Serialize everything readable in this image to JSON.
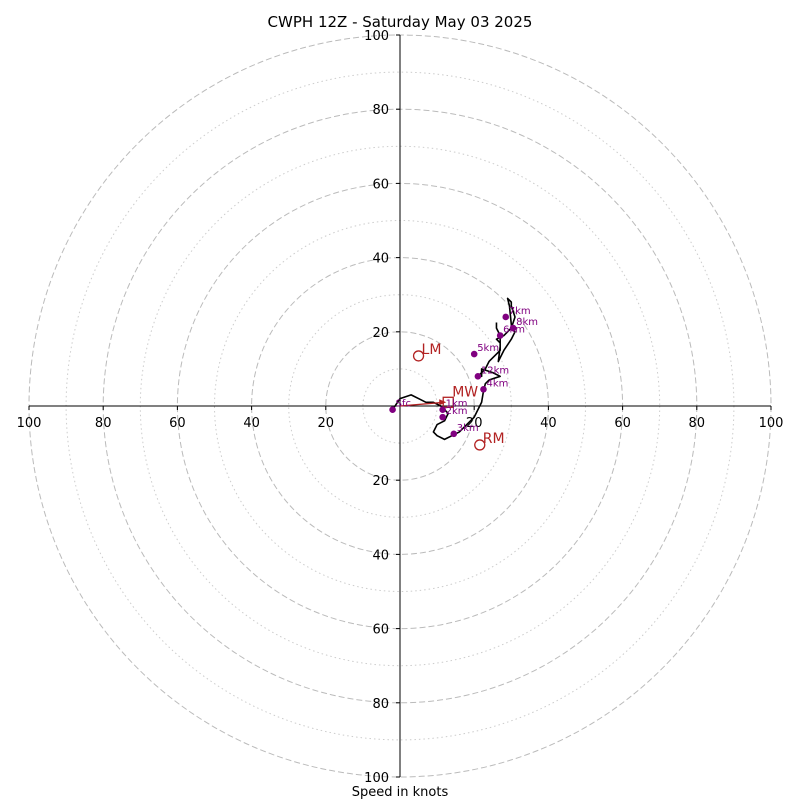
{
  "chart_data": {
    "type": "hodograph",
    "title": "CWPH 12Z - Saturday May 03 2025",
    "xlabel": "Speed in knots",
    "range": [
      -100,
      100
    ],
    "ring_major": [
      20,
      40,
      60,
      80,
      100
    ],
    "ring_minor": [
      10,
      30,
      50,
      70,
      90
    ],
    "axis_tick_labels": [
      "100",
      "80",
      "60",
      "40",
      "20",
      "20",
      "40",
      "60",
      "80",
      "100"
    ],
    "axis_tick_values": [
      -100,
      -80,
      -60,
      -40,
      -20,
      20,
      40,
      60,
      80,
      100
    ],
    "hodograph_trace": [
      [
        -2,
        -1
      ],
      [
        0,
        2
      ],
      [
        3,
        3
      ],
      [
        5,
        2
      ],
      [
        7,
        1
      ],
      [
        9,
        1
      ],
      [
        11,
        0
      ],
      [
        12,
        -1
      ],
      [
        13,
        -2
      ],
      [
        12,
        -4
      ],
      [
        10,
        -5
      ],
      [
        9,
        -7
      ],
      [
        10,
        -8
      ],
      [
        12,
        -9
      ],
      [
        14,
        -8
      ],
      [
        16,
        -7
      ],
      [
        18,
        -5
      ],
      [
        20,
        -3
      ],
      [
        22,
        1
      ],
      [
        22.5,
        4
      ],
      [
        23,
        6
      ],
      [
        24,
        7
      ],
      [
        27,
        8
      ],
      [
        25,
        9
      ],
      [
        22,
        10
      ],
      [
        22,
        8
      ],
      [
        21,
        8
      ],
      [
        23,
        10
      ],
      [
        24,
        12
      ],
      [
        26,
        14
      ],
      [
        27,
        15
      ],
      [
        27,
        17
      ],
      [
        26,
        18
      ],
      [
        28,
        19
      ],
      [
        30,
        21
      ],
      [
        31,
        24
      ],
      [
        30,
        27
      ],
      [
        30,
        28
      ],
      [
        29,
        29
      ],
      [
        29.5,
        27
      ],
      [
        30,
        22
      ],
      [
        31,
        20
      ],
      [
        30,
        18
      ],
      [
        28,
        15
      ],
      [
        27,
        13
      ],
      [
        26.5,
        12
      ],
      [
        27,
        16
      ],
      [
        27,
        19
      ],
      [
        26,
        21
      ],
      [
        26,
        22
      ],
      [
        26,
        22.5
      ]
    ],
    "height_markers": [
      {
        "label": "Sfc",
        "x": -2,
        "y": -1
      },
      {
        "label": "1km",
        "x": 11.5,
        "y": -1
      },
      {
        "label": "2km",
        "x": 11.5,
        "y": -3
      },
      {
        "label": "3km",
        "x": 14.5,
        "y": -7.5
      },
      {
        "label": "4km",
        "x": 22.5,
        "y": 4.5
      },
      {
        "label": "5km",
        "x": 20,
        "y": 14
      },
      {
        "label": "6km",
        "x": 27,
        "y": 19
      },
      {
        "label": "7km",
        "x": 28.5,
        "y": 24
      },
      {
        "label": "8km",
        "x": 30.5,
        "y": 21
      },
      {
        "label": "12km",
        "x": 21,
        "y": 8
      }
    ],
    "storm_motions": [
      {
        "label": "LM",
        "x": 5,
        "y": 13.5
      },
      {
        "label": "RM",
        "x": 21.5,
        "y": -10.5
      },
      {
        "label": "MW",
        "x": 13,
        "y": 1
      }
    ],
    "colors": {
      "trace": "#000000",
      "markers": "#800080",
      "storm_motion": "#b22222",
      "rings": "#bbbbbb",
      "minor_rings": "#cccccc"
    }
  }
}
